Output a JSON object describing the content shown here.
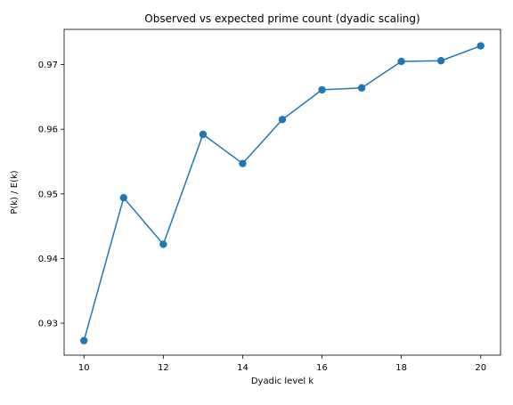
{
  "chart_data": {
    "type": "line",
    "title": "Observed vs expected prime count (dyadic scaling)",
    "xlabel": "Dyadic level k",
    "ylabel": "P(k) / E(k)",
    "x": [
      10,
      11,
      12,
      13,
      14,
      15,
      16,
      17,
      18,
      19,
      20
    ],
    "series": [
      {
        "values": [
          0.9273,
          0.9494,
          0.9422,
          0.9592,
          0.9547,
          0.9615,
          0.9661,
          0.9664,
          0.9705,
          0.9706,
          0.9729
        ]
      }
    ],
    "xlim": [
      9.5,
      20.5
    ],
    "ylim": [
      0.92505,
      0.97545
    ],
    "xticks": [
      10,
      12,
      14,
      16,
      18,
      20
    ],
    "yticks": [
      0.93,
      0.94,
      0.95,
      0.96,
      0.97
    ],
    "ytick_labels": [
      "0.93",
      "0.94",
      "0.95",
      "0.96",
      "0.97"
    ],
    "grid": false,
    "marker": "circle",
    "color": "#1f77b4"
  }
}
